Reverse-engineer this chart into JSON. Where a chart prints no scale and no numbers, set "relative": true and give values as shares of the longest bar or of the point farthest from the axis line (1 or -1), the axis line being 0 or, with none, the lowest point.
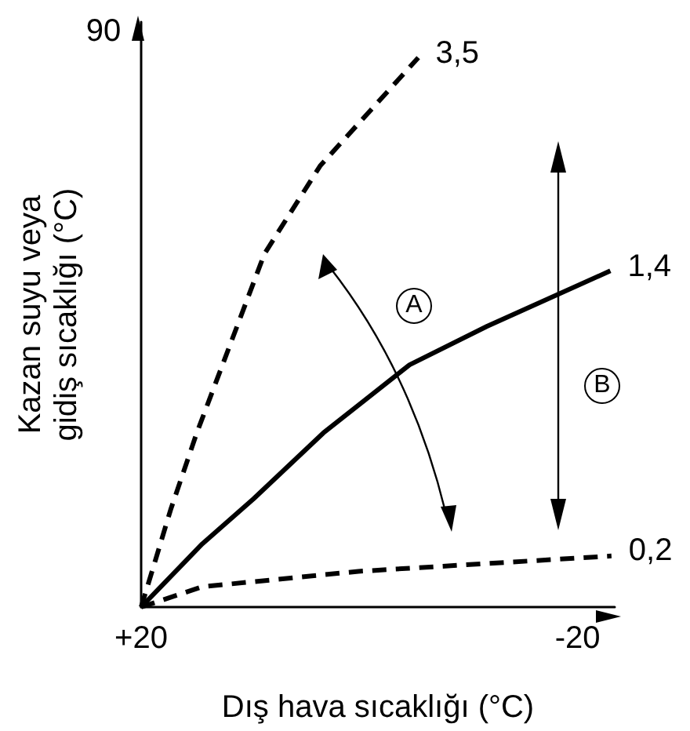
{
  "chart_data": {
    "type": "line",
    "relative": true,
    "xlabel": "Dış hava sıcaklığı (°C)",
    "ylabel": "Kazan suyu veya gidiş sıcaklığı (°C)",
    "xlim": [
      20,
      -23.4
    ],
    "xticks": [
      {
        "value": 20,
        "label": "+20"
      },
      -20
    ],
    "grid": false,
    "legend": false,
    "marker": "none",
    "color": "#000000",
    "series": [
      {
        "name": "3,5",
        "line_style": "dashed",
        "x": [
          20,
          19.0,
          17.3,
          14.9,
          8.7,
          3.6,
          -5.4
        ],
        "values": [
          0,
          0.065,
          0.177,
          0.317,
          0.643,
          0.803,
          1
        ]
      },
      {
        "name": "1,4",
        "line_style": "solid",
        "x": [
          20,
          14.4,
          9.7,
          3.3,
          -4.6,
          -11.7,
          -23.0
        ],
        "values": [
          0,
          0.115,
          0.197,
          0.317,
          0.441,
          0.511,
          0.612
        ]
      },
      {
        "name": "0,2",
        "line_style": "dashed",
        "x": [
          20,
          14.4,
          0.1,
          -23.1
        ],
        "values": [
          0,
          0.037,
          0.065,
          0.093
        ]
      }
    ],
    "annotations": [
      "90",
      "A",
      "B"
    ]
  }
}
